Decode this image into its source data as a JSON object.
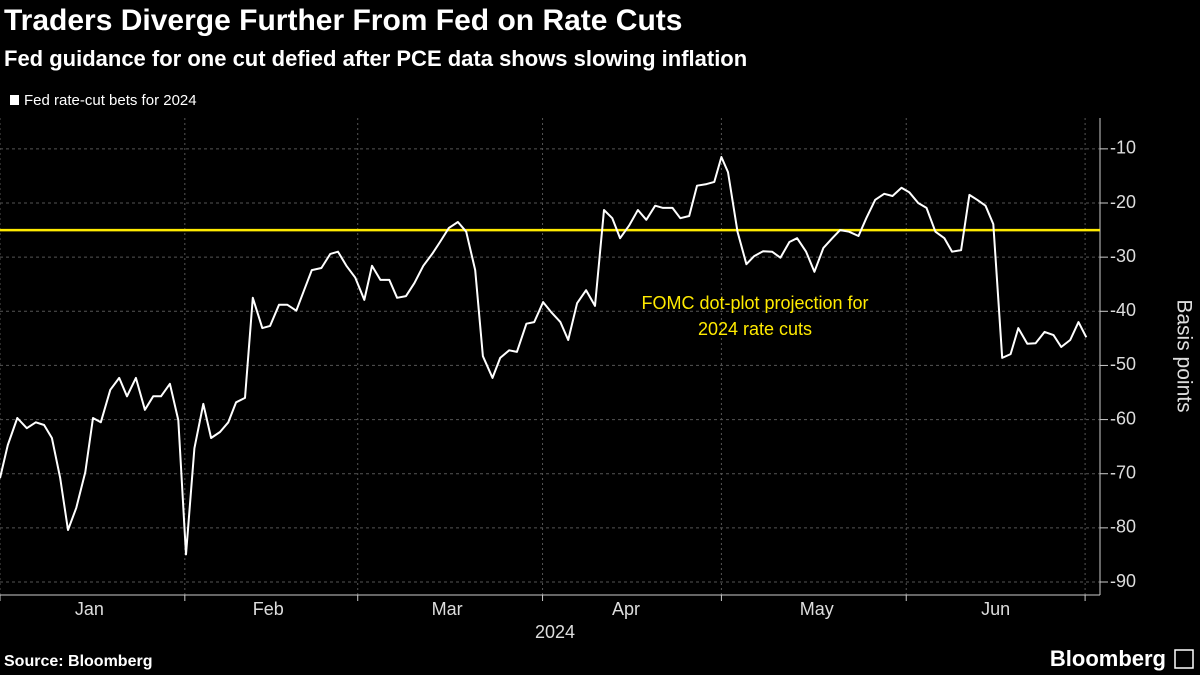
{
  "chart_data": {
    "type": "line",
    "title": "Traders Diverge Further From Fed on Rate Cuts",
    "subtitle": "Fed guidance for one cut defied after PCE data shows slowing inflation",
    "ylabel": "Basis points",
    "xlabel": "2024",
    "source": "Source: Bloomberg",
    "logo": "Bloomberg",
    "x": [
      1,
      2.3,
      3.9,
      5.5,
      7.0,
      8.4,
      9.7,
      11.1,
      12.4,
      13.8,
      15.3,
      16.6,
      17.9,
      19.5,
      21.0,
      22.3,
      23.8,
      25.3,
      26.7,
      28.0,
      29.5,
      30.9,
      32.2,
      33.6,
      35.1,
      36.4,
      37.9,
      39.3,
      40.6,
      42.1,
      43.4,
      45.0,
      46.3,
      47.8,
      49.2,
      50.7,
      52.0,
      53.3,
      54.9,
      56.4,
      57.7,
      59.1,
      60.6,
      62.1,
      63.4,
      64.8,
      66.3,
      67.6,
      69.1,
      70.5,
      72.0,
      73.5,
      74.8,
      76.3,
      77.8,
      79.2,
      80.7,
      82.0,
      83.6,
      84.9,
      86.4,
      87.7,
      89.3,
      90.6,
      92.1,
      93.4,
      95.0,
      96.3,
      97.8,
      99.3,
      100.8,
      102.3,
      103.7,
      105.0,
      106.5,
      108.0,
      109.4,
      110.9,
      112.2,
      113.8,
      115.1,
      116.6,
      117.9,
      119.5,
      120.8,
      122.0,
      123.1,
      124.7,
      126.2,
      127.5,
      129.0,
      130.5,
      131.9,
      133.4,
      134.7,
      136.2,
      137.6,
      139.1,
      140.6,
      141.9,
      143.4,
      145.0,
      146.3,
      147.8,
      149.3,
      150.7,
      152.2,
      153.5,
      155.0,
      156.4,
      157.9,
      159.4,
      160.7,
      162.2,
      163.6,
      164.9,
      166.3,
      167.6,
      169.1,
      170.5,
      171.8,
      173.3,
      174.7,
      176.2,
      177.7,
      179.0,
      180.5,
      181.9,
      183.2
    ],
    "series": [
      {
        "name": "Fed rate-cut bets for 2024",
        "color": "#ffffff",
        "values": [
          -70.8,
          -64.7,
          -59.7,
          -61.6,
          -60.5,
          -61,
          -63.4,
          -70.8,
          -80.4,
          -76.3,
          -69.7,
          -59.7,
          -60.5,
          -54.5,
          -52.3,
          -55.7,
          -52.3,
          -58.2,
          -55.7,
          -55.7,
          -53.4,
          -60.1,
          -84.9,
          -65.3,
          -57.1,
          -63.4,
          -62.3,
          -60.5,
          -56.8,
          -56,
          -37.5,
          -43.1,
          -42.7,
          -38.8,
          -38.8,
          -39.9,
          -36.1,
          -32.4,
          -32,
          -29.4,
          -29,
          -31.6,
          -33.8,
          -37.9,
          -31.6,
          -34.2,
          -34.2,
          -37.5,
          -37.2,
          -34.8,
          -31.6,
          -29.4,
          -27.2,
          -24.6,
          -23.5,
          -25.3,
          -32.4,
          -48.3,
          -52.3,
          -48.6,
          -47.2,
          -47.5,
          -42.3,
          -42,
          -38.3,
          -40.1,
          -42,
          -45.3,
          -38.5,
          -36.1,
          -39,
          -21.3,
          -22.8,
          -26.5,
          -24.2,
          -21.3,
          -23.1,
          -20.5,
          -20.9,
          -20.9,
          -22.8,
          -22.4,
          -16.8,
          -16.5,
          -16.1,
          -11.5,
          -14.3,
          -25.3,
          -31.3,
          -29.8,
          -28.9,
          -29,
          -30.1,
          -27.2,
          -26.5,
          -29,
          -32.7,
          -28.3,
          -26.5,
          -25,
          -25.3,
          -26.1,
          -22.8,
          -19.4,
          -18.3,
          -18.7,
          -17.2,
          -18,
          -20,
          -20.9,
          -25.3,
          -26.5,
          -29,
          -28.7,
          -18.5,
          -19.4,
          -20.5,
          -23.9,
          -48.6,
          -47.9,
          -43.1,
          -46,
          -45.9,
          -43.8,
          -44.4,
          -46.6,
          -45.3,
          -42,
          -44.8
        ]
      }
    ],
    "annotation": {
      "text": [
        "FOMC dot-plot projection for",
        "2024 rate cuts"
      ],
      "value": -25,
      "color": "#ffea00"
    },
    "xlim": [
      1,
      185.5
    ],
    "xticks": [
      {
        "value": 16,
        "label": "Jan"
      },
      {
        "value": 46,
        "label": "Feb"
      },
      {
        "value": 76,
        "label": "Mar"
      },
      {
        "value": 106,
        "label": "Apr"
      },
      {
        "value": 138,
        "label": "May"
      },
      {
        "value": 168,
        "label": "Jun"
      }
    ],
    "xgrid": [
      1,
      32,
      61,
      92,
      122,
      153,
      183
    ],
    "ylim": [
      -92.4,
      -4.3
    ],
    "yticks": [
      -10,
      -20,
      -30,
      -40,
      -50,
      -60,
      -70,
      -80,
      -90
    ],
    "grid": true
  }
}
